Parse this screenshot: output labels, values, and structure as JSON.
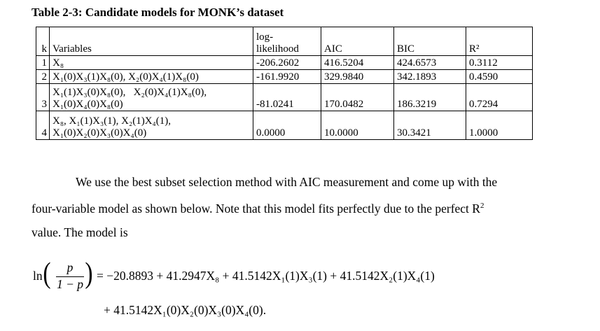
{
  "table": {
    "caption": "Table 2-3: Candidate models for MONK’s dataset",
    "headers": {
      "k": "k",
      "variables": "Variables",
      "loglik_line1": "log-",
      "loglik_line2": "likelihood",
      "aic": "AIC",
      "bic": "BIC",
      "r2": "R²"
    },
    "rows": [
      {
        "k": "1",
        "vars_line1": "X₈",
        "vars_line2": "",
        "loglik": "-206.2602",
        "aic": "416.5204",
        "bic": "424.6573",
        "r2": "0.3112"
      },
      {
        "k": "2",
        "vars_line1": "X₁(0)X₃(1)X₈(0), X₂(0)X₄(1)X₈(0)",
        "vars_line2": "",
        "loglik": "-161.9920",
        "aic": "329.9840",
        "bic": "342.1893",
        "r2": "0.4590"
      },
      {
        "k": "3",
        "vars_line1": "X₁(1)X₃(0)X₈(0),   X₂(0)X₄(1)X₈(0),",
        "vars_line2": "X₁(0)X₄(0)X₈(0)",
        "loglik": "-81.0241",
        "aic": "170.0482",
        "bic": "186.3219",
        "r2": "0.7294"
      },
      {
        "k": "4",
        "vars_line1": "X₈, X₁(1)X₃(1), X₂(1)X₄(1),",
        "vars_line2": "X₁(0)X₂(0)X₃(0)X₄(0)",
        "loglik": "0.0000",
        "aic": "10.0000",
        "bic": "30.3421",
        "r2": "1.0000"
      }
    ]
  },
  "paragraph": {
    "line1": "We use the best subset selection method with AIC measurement and come up with the",
    "line2": "four-variable model as shown below. Note that this model fits perfectly due to the perfect R",
    "line2_sup": "2",
    "line3": "value. The model is"
  },
  "equation": {
    "ln": "ln",
    "numerator": "p",
    "denominator": "1 − p",
    "rhs_line1": "= −20.8893 + 41.2947X₈ + 41.5142X₁(1)X₃(1) + 41.5142X₂(1)X₄(1)",
    "rhs_line2": "+ 41.5142X₁(0)X₂(0)X₃(0)X₄(0)."
  }
}
